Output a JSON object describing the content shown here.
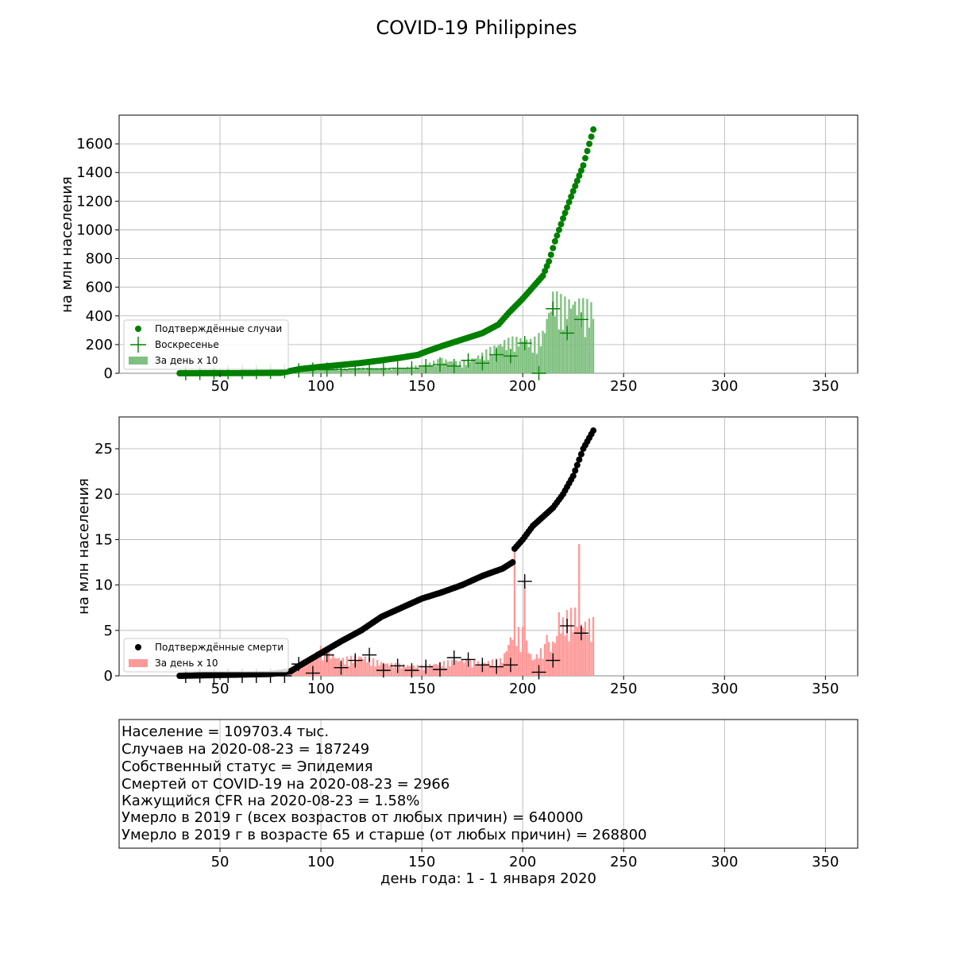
{
  "figure": {
    "title": "COVID-19 Philippines"
  },
  "chart_data": [
    {
      "type": "scatter+bar",
      "id": "cases",
      "ylabel": "на млн населения",
      "xlim": [
        0,
        366
      ],
      "ylim": [
        0,
        1800
      ],
      "xticks": [
        50,
        100,
        150,
        200,
        250,
        300,
        350
      ],
      "yticks": [
        0,
        200,
        400,
        600,
        800,
        1000,
        1200,
        1400,
        1600
      ],
      "grid": true,
      "legend_position": "lower-left",
      "colors": {
        "cumulative": "#008000",
        "daily": "#80c080",
        "sunday": "#008000"
      },
      "legend": [
        "Подтверждённые случаи",
        "Воскресенье",
        "За день x 10"
      ],
      "cumulative_anchors": [
        [
          30,
          0
        ],
        [
          60,
          1
        ],
        [
          80,
          3
        ],
        [
          90,
          30
        ],
        [
          100,
          45
        ],
        [
          110,
          58
        ],
        [
          120,
          72
        ],
        [
          130,
          90
        ],
        [
          140,
          110
        ],
        [
          148,
          128
        ],
        [
          152,
          150
        ],
        [
          160,
          190
        ],
        [
          170,
          235
        ],
        [
          180,
          280
        ],
        [
          188,
          340
        ],
        [
          193,
          420
        ],
        [
          200,
          520
        ],
        [
          205,
          600
        ],
        [
          210,
          680
        ],
        [
          213,
          780
        ],
        [
          216,
          920
        ],
        [
          220,
          1080
        ],
        [
          225,
          1270
        ],
        [
          230,
          1450
        ],
        [
          235,
          1700
        ]
      ],
      "daily_anchors": [
        [
          30,
          0
        ],
        [
          80,
          10
        ],
        [
          90,
          18
        ],
        [
          100,
          25
        ],
        [
          110,
          25
        ],
        [
          120,
          30
        ],
        [
          130,
          30
        ],
        [
          140,
          30
        ],
        [
          150,
          45
        ],
        [
          160,
          80
        ],
        [
          170,
          60
        ],
        [
          180,
          110
        ],
        [
          190,
          180
        ],
        [
          200,
          200
        ],
        [
          205,
          180
        ],
        [
          210,
          230
        ],
        [
          215,
          450
        ],
        [
          220,
          400
        ],
        [
          225,
          420
        ],
        [
          230,
          390
        ],
        [
          235,
          380
        ]
      ],
      "sunday_markers": [
        [
          33,
          0
        ],
        [
          40,
          3
        ],
        [
          47,
          5
        ],
        [
          54,
          8
        ],
        [
          61,
          9
        ],
        [
          68,
          9
        ],
        [
          75,
          10
        ],
        [
          82,
          15
        ],
        [
          89,
          20
        ],
        [
          96,
          25
        ],
        [
          103,
          25
        ],
        [
          110,
          25
        ],
        [
          117,
          30
        ],
        [
          124,
          30
        ],
        [
          131,
          30
        ],
        [
          138,
          35
        ],
        [
          145,
          35
        ],
        [
          152,
          50
        ],
        [
          159,
          60
        ],
        [
          166,
          50
        ],
        [
          173,
          90
        ],
        [
          180,
          70
        ],
        [
          187,
          130
        ],
        [
          194,
          120
        ],
        [
          201,
          210
        ],
        [
          208,
          0
        ],
        [
          215,
          450
        ],
        [
          222,
          280
        ],
        [
          229,
          375
        ]
      ]
    },
    {
      "type": "scatter+bar",
      "id": "deaths",
      "ylabel": "на млн населения",
      "xlim": [
        0,
        366
      ],
      "ylim": [
        0,
        28.5
      ],
      "xticks": [
        50,
        100,
        150,
        200,
        250,
        300,
        350
      ],
      "yticks": [
        0,
        5,
        10,
        15,
        20,
        25
      ],
      "grid": true,
      "legend_position": "lower-left",
      "colors": {
        "cumulative": "#000000",
        "daily": "#ff9999",
        "sunday": "#000000"
      },
      "legend": [
        "Подтверждённые смерти",
        "За день x 10"
      ],
      "cumulative_anchors": [
        [
          30,
          0
        ],
        [
          75,
          0.2
        ],
        [
          85,
          0.5
        ],
        [
          90,
          1.2
        ],
        [
          100,
          2.5
        ],
        [
          110,
          3.8
        ],
        [
          120,
          5.0
        ],
        [
          130,
          6.5
        ],
        [
          140,
          7.5
        ],
        [
          150,
          8.5
        ],
        [
          160,
          9.2
        ],
        [
          170,
          10.0
        ],
        [
          180,
          11.0
        ],
        [
          190,
          11.8
        ],
        [
          195,
          12.5
        ],
        [
          196,
          14.0
        ],
        [
          200,
          15.0
        ],
        [
          205,
          16.5
        ],
        [
          210,
          17.5
        ],
        [
          215,
          18.5
        ],
        [
          220,
          20.0
        ],
        [
          225,
          22.0
        ],
        [
          230,
          25.0
        ],
        [
          235,
          27.0
        ]
      ],
      "daily_anchors": [
        [
          30,
          0
        ],
        [
          80,
          0.2
        ],
        [
          88,
          1.0
        ],
        [
          95,
          1.5
        ],
        [
          100,
          2.5
        ],
        [
          105,
          2.0
        ],
        [
          110,
          1.5
        ],
        [
          120,
          1.8
        ],
        [
          130,
          1.2
        ],
        [
          140,
          1.0
        ],
        [
          150,
          0.9
        ],
        [
          160,
          1.2
        ],
        [
          170,
          1.5
        ],
        [
          180,
          1.2
        ],
        [
          190,
          1.5
        ],
        [
          195,
          4.0
        ],
        [
          200,
          4.0
        ],
        [
          205,
          1.5
        ],
        [
          210,
          2.5
        ],
        [
          215,
          3.0
        ],
        [
          220,
          5.0
        ],
        [
          225,
          6.0
        ],
        [
          230,
          4.8
        ],
        [
          235,
          4.8
        ]
      ],
      "spikes": [
        [
          196,
          14.0
        ],
        [
          201,
          10.5
        ],
        [
          228,
          14.5
        ],
        [
          212,
          4.5
        ],
        [
          218,
          7.0
        ],
        [
          224,
          7.5
        ]
      ],
      "sunday_markers": [
        [
          33,
          0
        ],
        [
          40,
          0
        ],
        [
          47,
          0
        ],
        [
          54,
          0
        ],
        [
          61,
          0
        ],
        [
          68,
          0
        ],
        [
          75,
          0
        ],
        [
          82,
          0
        ],
        [
          89,
          1.3
        ],
        [
          96,
          0.3
        ],
        [
          103,
          2.3
        ],
        [
          110,
          0.9
        ],
        [
          117,
          1.7
        ],
        [
          124,
          2.3
        ],
        [
          131,
          0.6
        ],
        [
          138,
          1.1
        ],
        [
          145,
          0.6
        ],
        [
          152,
          1.0
        ],
        [
          159,
          0.7
        ],
        [
          166,
          2.0
        ],
        [
          173,
          1.8
        ],
        [
          180,
          1.2
        ],
        [
          187,
          1.0
        ],
        [
          194,
          1.2
        ],
        [
          201,
          10.4
        ],
        [
          208,
          0.4
        ],
        [
          215,
          1.7
        ],
        [
          222,
          5.5
        ],
        [
          229,
          4.7
        ]
      ]
    }
  ],
  "info_panel": {
    "lines": [
      "Население = 109703.4 тыс.",
      "Случаев на 2020-08-23 = 187249",
      "Собственный статус = Эпидемия",
      "Смертей от COVID-19 на 2020-08-23 = 2966",
      "Кажущийся CFR на 2020-08-23 = 1.58%",
      "Умерло в 2019 г (всех возрастов от любых причин) = 640000",
      "Умерло в 2019 г в возрасте 65 и старше (от любых причин) = 268800"
    ],
    "xticks": [
      50,
      100,
      150,
      200,
      250,
      300,
      350
    ],
    "xlabel": "день года: 1 - 1 января 2020"
  }
}
